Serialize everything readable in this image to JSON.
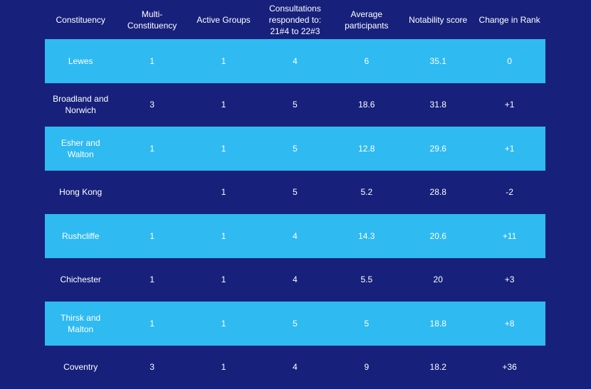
{
  "table": {
    "columns": [
      "Constituency",
      "Multi-Constituency",
      "Active Groups",
      "Consultations responded to: 21#4 to 22#3",
      "Average participants",
      "Notability score",
      "Change in Rank"
    ],
    "rows": [
      [
        "Lewes",
        "1",
        "1",
        "4",
        "6",
        "35.1",
        "0"
      ],
      [
        "Broadland and Norwich",
        "3",
        "1",
        "5",
        "18.6",
        "31.8",
        "+1"
      ],
      [
        "Esher and Walton",
        "1",
        "1",
        "5",
        "12.8",
        "29.6",
        "+1"
      ],
      [
        "Hong Kong",
        null,
        "1",
        "5",
        "5.2",
        "28.8",
        "-2"
      ],
      [
        "Rushcliffe",
        "1",
        "1",
        "4",
        "14.3",
        "20.6",
        "+11"
      ],
      [
        "Chichester",
        "1",
        "1",
        "4",
        "5.5",
        "20",
        "+3"
      ],
      [
        "Thirsk and Malton",
        "1",
        "1",
        "5",
        "5",
        "18.8",
        "+8"
      ],
      [
        "Coventry",
        "3",
        "1",
        "4",
        "9",
        "18.2",
        "+36"
      ]
    ]
  }
}
